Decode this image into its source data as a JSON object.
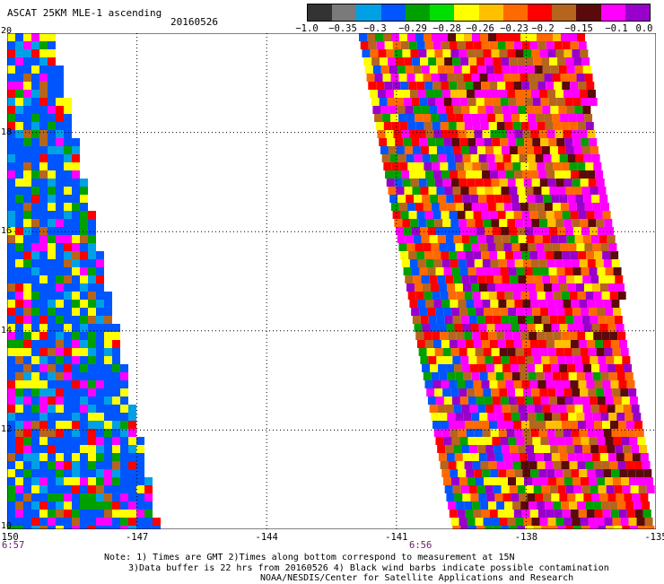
{
  "header": {
    "title": "ASCAT 25KM MLE-1 ascending",
    "date": "20160526"
  },
  "colorbar": {
    "labels": [
      "−1.0",
      "−0.35",
      "−0.3",
      "−0.29",
      "−0.28",
      "−0.26",
      "−0.23",
      "−0.2",
      "−0.15",
      "−0.1",
      "0.0"
    ],
    "colors": [
      "#333333",
      "#7a7a7a",
      "#00a0e6",
      "#0055ff",
      "#00a000",
      "#00e000",
      "#ffff00",
      "#ffc000",
      "#ff6a00",
      "#ff0000",
      "#b5651d",
      "#5a0a0a",
      "#ff00ff",
      "#9900cc"
    ]
  },
  "map": {
    "lon_range": [
      -150,
      -135
    ],
    "lat_range": [
      10,
      20
    ],
    "lon_ticks": [
      "-150",
      "-147",
      "-144",
      "-141",
      "-138",
      "-135"
    ],
    "lat_ticks": [
      "20",
      "18",
      "16",
      "14",
      "12",
      "10"
    ],
    "time_labels": [
      "6:57",
      "6:56"
    ],
    "palette": [
      "#0055ff",
      "#00a0e6",
      "#00a000",
      "#ffff00",
      "#ffc000",
      "#ff6a00",
      "#ff0000",
      "#b5651d",
      "#5a0a0a",
      "#ff00ff",
      "#9900cc"
    ]
  },
  "footer": {
    "line1": "Note: 1) Times are GMT 2)Times along bottom correspond to measurement at 15N",
    "line2": "3)Data buffer is 22 hrs from 20160526 4) Black wind barbs indicate possible contamination",
    "line3": "NOAA/NESDIS/Center for Satellite Applications and Research"
  }
}
